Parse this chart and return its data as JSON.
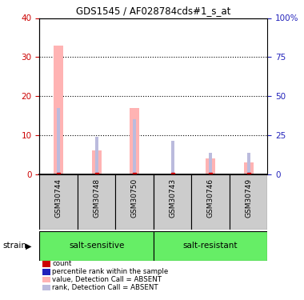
{
  "title": "GDS1545 / AF028784cds#1_s_at",
  "samples": [
    "GSM30744",
    "GSM30748",
    "GSM30750",
    "GSM30743",
    "GSM30746",
    "GSM30749"
  ],
  "group_labels": [
    "salt-sensitive",
    "salt-resistant"
  ],
  "value_absent_bars": [
    33,
    6,
    17,
    0,
    4,
    3
  ],
  "rank_absent_bars": [
    17,
    9.5,
    14,
    8.5,
    5.5,
    5.5
  ],
  "left_ylim": [
    0,
    40
  ],
  "right_ylim": [
    0,
    100
  ],
  "left_yticks": [
    0,
    10,
    20,
    30,
    40
  ],
  "right_yticks": [
    0,
    25,
    50,
    75,
    100
  ],
  "right_yticklabels": [
    "0",
    "25",
    "50",
    "75",
    "100%"
  ],
  "color_count": "#cc0000",
  "color_rank": "#2222bb",
  "color_value_absent": "#ffb3b3",
  "color_rank_absent": "#bbbbdd",
  "group_color": "#66ee66",
  "sample_box_color": "#cccccc",
  "value_bar_width": 0.25,
  "rank_bar_width": 0.08,
  "legend_items": [
    {
      "label": "count",
      "color": "#cc0000"
    },
    {
      "label": "percentile rank within the sample",
      "color": "#2222bb"
    },
    {
      "label": "value, Detection Call = ABSENT",
      "color": "#ffb3b3"
    },
    {
      "label": "rank, Detection Call = ABSENT",
      "color": "#bbbbdd"
    }
  ],
  "n_groups_split": 3,
  "figsize": [
    3.8,
    3.75
  ],
  "dpi": 100
}
